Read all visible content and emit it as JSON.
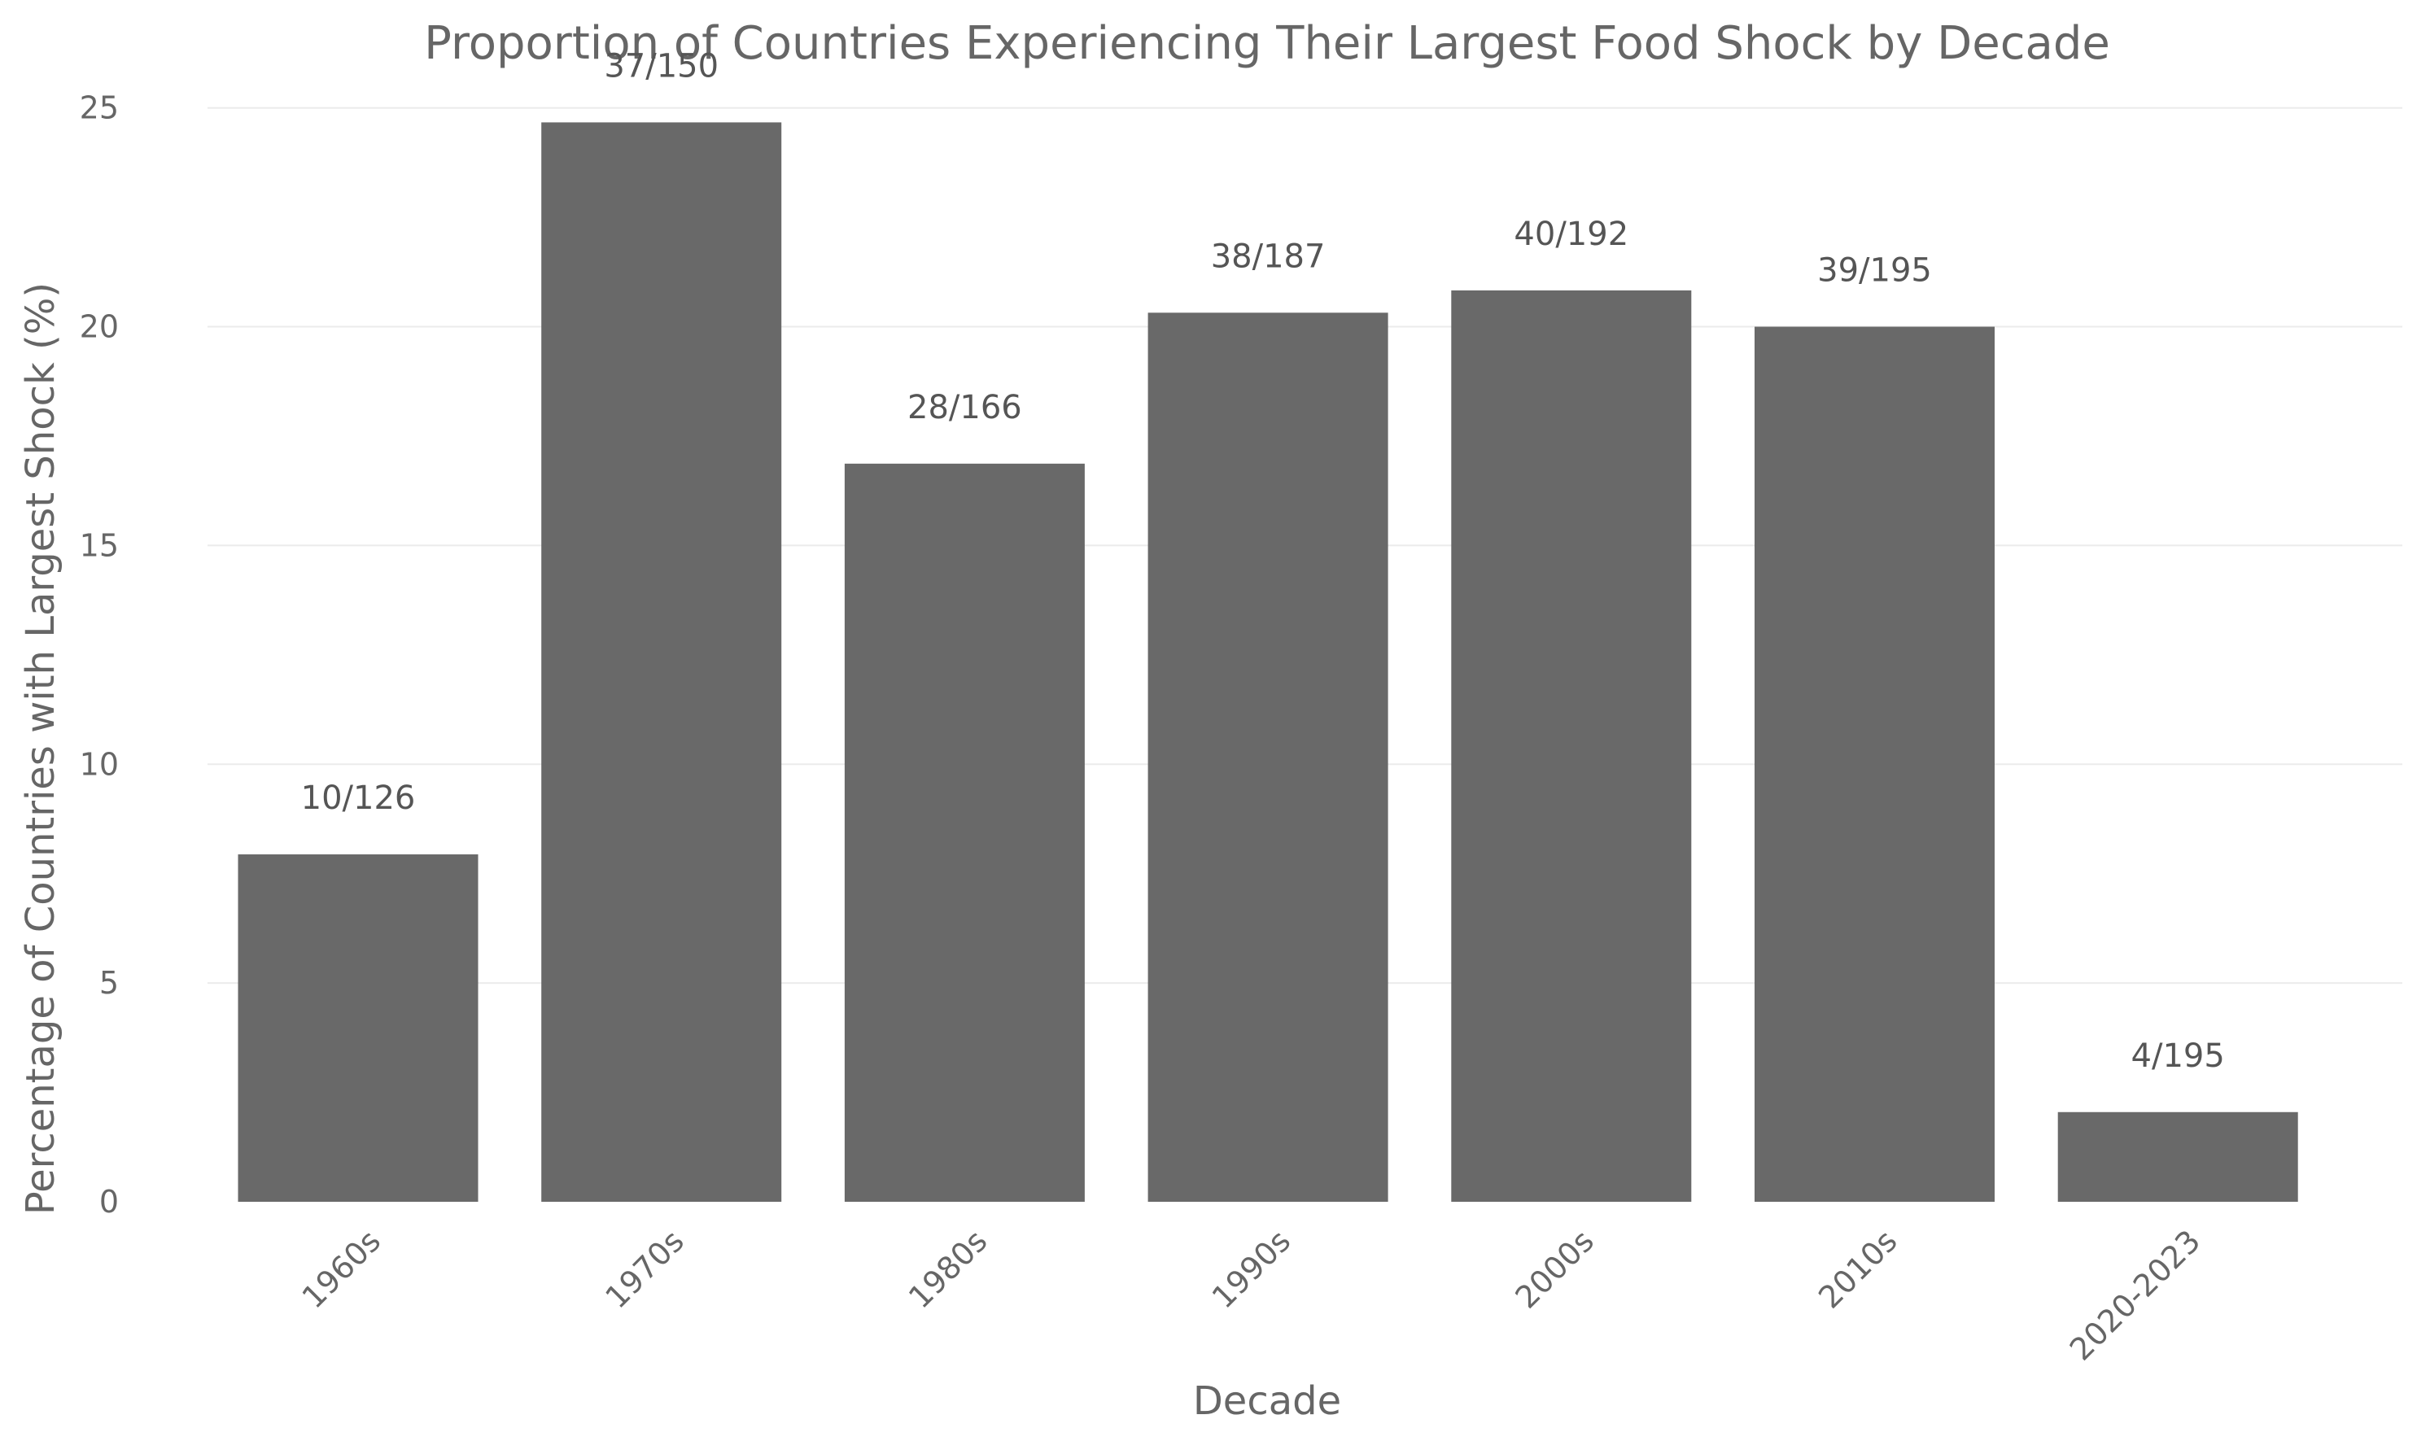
{
  "chart_data": {
    "type": "bar",
    "title": "Proportion of Countries Experiencing Their Largest Food Shock by Decade",
    "xlabel": "Decade",
    "ylabel": "Percentage of Countries with Largest Shock (%)",
    "categories": [
      "1960s",
      "1970s",
      "1980s",
      "1990s",
      "2000s",
      "2010s",
      "2020-2023"
    ],
    "values": [
      7.94,
      24.67,
      16.87,
      20.32,
      20.83,
      20.0,
      2.05
    ],
    "bar_labels": [
      "10/126",
      "37/150",
      "28/166",
      "38/187",
      "40/192",
      "39/195",
      "4/195"
    ],
    "ylim": [
      0,
      26.5
    ],
    "yticks": [
      0,
      5,
      10,
      15,
      20,
      25
    ],
    "grid": true,
    "bar_color": "#696969"
  }
}
